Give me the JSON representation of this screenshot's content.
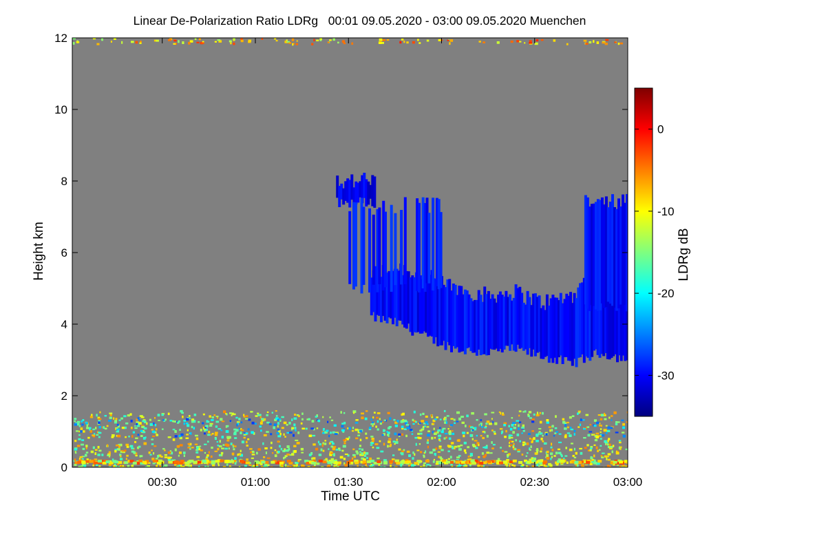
{
  "title": "Linear De-Polarization Ratio LDRg   00:01 09.05.2020 - 03:00 09.05.2020 Muenchen",
  "chart_data": {
    "type": "heatmap",
    "title": "Linear De-Polarization Ratio LDRg   00:01 09.05.2020 - 03:00 09.05.2020 Muenchen",
    "xlabel": "Time UTC",
    "ylabel": "Height km",
    "colorbar_label": "LDRg dB",
    "x_unit": "minutes since 00:00 UTC",
    "xlim": [
      1,
      180
    ],
    "ylim": [
      0,
      12
    ],
    "x_ticks": [
      {
        "value": 30,
        "label": "00:30"
      },
      {
        "value": 60,
        "label": "01:00"
      },
      {
        "value": 90,
        "label": "01:30"
      },
      {
        "value": 120,
        "label": "02:00"
      },
      {
        "value": 150,
        "label": "02:30"
      },
      {
        "value": 180,
        "label": "03:00"
      }
    ],
    "y_ticks": [
      {
        "value": 0,
        "label": "0"
      },
      {
        "value": 2,
        "label": "2"
      },
      {
        "value": 4,
        "label": "4"
      },
      {
        "value": 6,
        "label": "6"
      },
      {
        "value": 8,
        "label": "8"
      },
      {
        "value": 10,
        "label": "10"
      },
      {
        "value": 12,
        "label": "12"
      }
    ],
    "colorbar_range": [
      -35,
      5
    ],
    "colorbar_ticks": [
      {
        "value": 0,
        "label": "0"
      },
      {
        "value": -10,
        "label": "-10"
      },
      {
        "value": -20,
        "label": "-20"
      },
      {
        "value": -30,
        "label": "-30"
      }
    ],
    "colormap": [
      "#00007f",
      "#0000ff",
      "#007fff",
      "#00ffff",
      "#7fff7f",
      "#ffff00",
      "#ff7f00",
      "#ff0000",
      "#7f0000"
    ],
    "background_color": "#808080",
    "features": [
      {
        "name": "cloud main layer",
        "ldr_db": -30,
        "t_start": 97,
        "t_end": 180,
        "h_bottom": [
          4.2,
          4.0,
          3.6,
          3.3,
          3.2,
          3.3,
          3.1,
          2.9,
          3.2,
          3.0
        ],
        "h_top": [
          5.4,
          5.6,
          5.3,
          5.0,
          4.8,
          4.9,
          4.6,
          4.8,
          5.6,
          6.5
        ]
      },
      {
        "name": "cloud upper patch",
        "ldr_db": -31,
        "t_start": 86,
        "t_end": 98,
        "h_bottom": 7.4,
        "h_top": 8.0
      },
      {
        "name": "cloud fragments",
        "ldr_db": -29,
        "t_start": 90,
        "t_end": 120,
        "h_bottom": 5.0,
        "h_top": 7.3
      },
      {
        "name": "cloud right tower",
        "ldr_db": -30,
        "t_start": 166,
        "t_end": 180,
        "h_bottom": 4.5,
        "h_top": 7.4
      },
      {
        "name": "aerosol boundary layer",
        "ldr_db": -12,
        "t_start": 1,
        "t_end": 180,
        "h_bottom": 0.0,
        "h_top": 1.6
      },
      {
        "name": "aerosol bright line",
        "ldr_db": -9,
        "t_start": 1,
        "t_end": 180,
        "h_bottom": 0.15,
        "h_top": 0.22
      },
      {
        "name": "aerosol enhanced patches",
        "ldr_db": -21,
        "t_start": 1,
        "t_end": 180,
        "h_bottom": 0.9,
        "h_top": 1.4
      },
      {
        "name": "top noise",
        "ldr_db": -8,
        "t_start": 1,
        "t_end": 180,
        "h_bottom": 11.85,
        "h_top": 12.0
      }
    ]
  }
}
